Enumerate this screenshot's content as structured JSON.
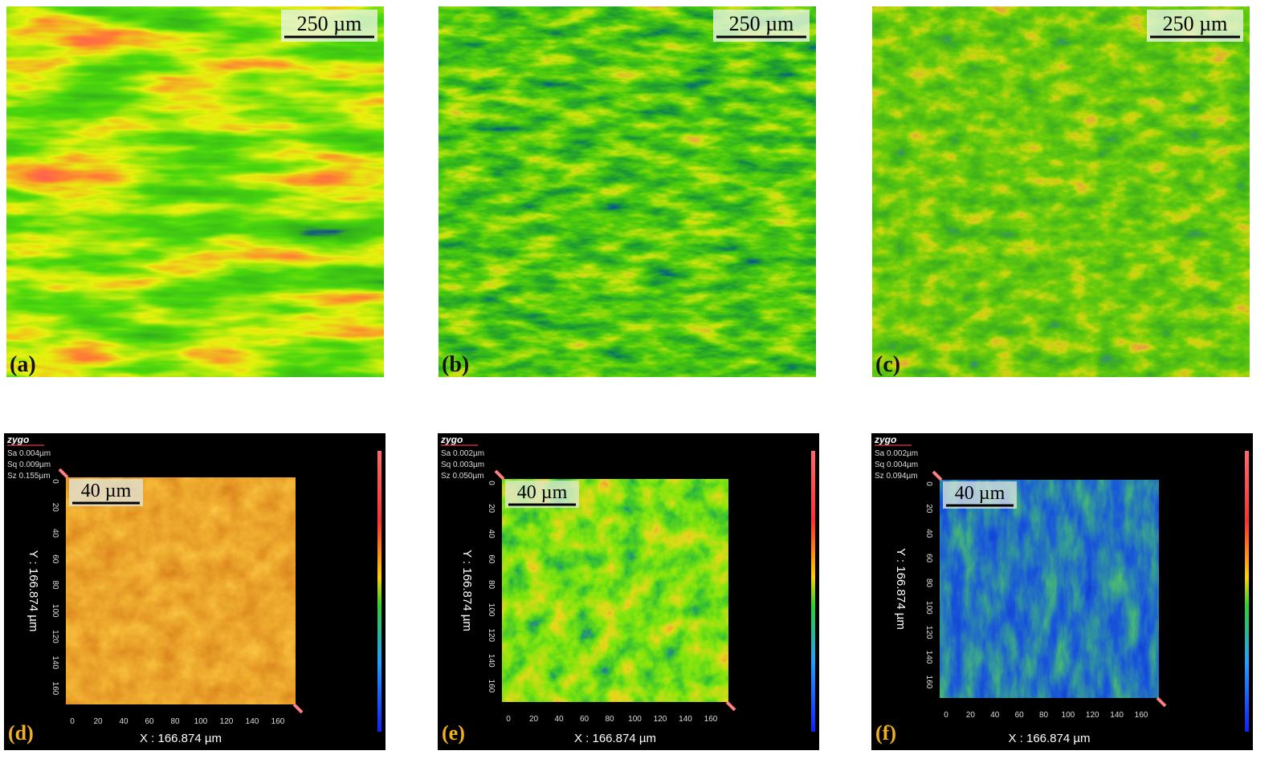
{
  "panels": [
    {
      "label": "(a)",
      "scale_bar": "250 µm"
    },
    {
      "label": "(b)",
      "scale_bar": "250 µm"
    },
    {
      "label": "(c)",
      "scale_bar": "250 µm"
    }
  ],
  "profiles": [
    {
      "label": "(d)",
      "logo": "zygo",
      "stats": [
        "Sa 0.004µm",
        "Sq 0.009µm",
        "Sz 0.155µm"
      ],
      "scale_bar": "40 µm",
      "x_axis": "X : 166.874 µm",
      "y_axis": "Y : 166.874 µm"
    },
    {
      "label": "(e)",
      "logo": "zygo",
      "stats": [
        "Sa 0.002µm",
        "Sq 0.003µm",
        "Sz 0.050µm"
      ],
      "scale_bar": "40 µm",
      "x_axis": "X : 166.874 µm",
      "y_axis": "Y : 166.874 µm"
    },
    {
      "label": "(f)",
      "logo": "zygo",
      "stats": [
        "Sa 0.002µm",
        "Sq 0.004µm",
        "Sz 0.094µm"
      ],
      "scale_bar": "40 µm",
      "x_axis": "X : 166.874 µm",
      "y_axis": "Y : 166.874 µm"
    }
  ],
  "ticks": [
    0,
    20,
    40,
    60,
    80,
    100,
    120,
    140,
    160
  ]
}
